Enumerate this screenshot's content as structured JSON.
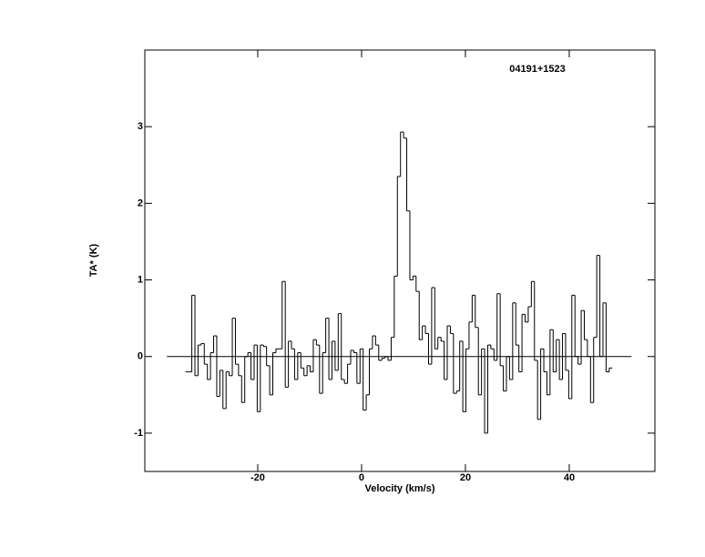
{
  "chart_data": {
    "type": "step",
    "title": "04191+1523",
    "xlabel": "Velocity (km/s)",
    "ylabel": "TA* (K)",
    "xlim": [
      -41.75,
      56.5
    ],
    "ylim": [
      -1.5,
      4.0
    ],
    "xticks": [
      -20,
      0,
      20,
      40
    ],
    "yticks": [
      -1,
      0,
      1,
      2,
      3
    ],
    "baseline": {
      "y": 0,
      "x": [
        -37.5,
        52
      ]
    },
    "color": "#000000",
    "x": [
      -33.6,
      -33,
      -32.4,
      -31.8,
      -31.2,
      -30.6,
      -30,
      -29.4,
      -28.8,
      -28.2,
      -27.6,
      -27,
      -26.4,
      -25.8,
      -25.2,
      -24.6,
      -24,
      -23.4,
      -22.8,
      -22.2,
      -21.6,
      -21,
      -20.4,
      -19.8,
      -19.2,
      -18.6,
      -18,
      -17.4,
      -16.8,
      -16.2,
      -15.6,
      -15,
      -14.4,
      -13.8,
      -13.2,
      -12.6,
      -12,
      -11.4,
      -10.8,
      -10.2,
      -9.6,
      -9,
      -8.4,
      -7.8,
      -7.2,
      -6.6,
      -6,
      -5.4,
      -4.8,
      -4.2,
      -3.6,
      -3,
      -2.4,
      -1.8,
      -1.2,
      -0.6,
      0,
      0.6,
      1.2,
      1.8,
      2.4,
      3,
      3.6,
      4.2,
      4.8,
      5.4,
      6,
      6.6,
      7.2,
      7.8,
      8.4,
      9,
      9.6,
      10.2,
      10.8,
      11.4,
      12,
      12.6,
      13.2,
      13.8,
      14.4,
      15,
      15.6,
      16.2,
      16.8,
      17.4,
      18,
      18.6,
      19.2,
      19.8,
      20.4,
      21,
      21.6,
      22.2,
      22.8,
      23.4,
      24,
      24.6,
      25.2,
      25.8,
      26.4,
      27,
      27.6,
      28.2,
      28.8,
      29.4,
      30,
      30.6,
      31.2,
      31.8,
      32.4,
      33,
      33.6,
      34.2,
      34.8,
      35.4,
      36,
      36.6,
      37.2,
      37.8,
      38.4,
      39,
      39.6,
      40.2,
      40.8,
      41.4,
      42,
      42.6,
      43.2,
      43.8,
      44.4,
      45,
      45.6,
      46.2,
      46.8,
      47.4,
      48
    ],
    "values": [
      -0.2,
      -0.2,
      0.8,
      -0.25,
      0.15,
      0.17,
      -0.1,
      -0.3,
      0.05,
      0.27,
      -0.52,
      -0.18,
      -0.68,
      -0.2,
      -0.25,
      0.5,
      -0.1,
      -0.25,
      -0.6,
      0.0,
      0.05,
      -0.3,
      0.15,
      -0.72,
      0.15,
      0.13,
      -0.12,
      -0.5,
      0.05,
      0.1,
      0.1,
      0.98,
      -0.4,
      0.2,
      0.1,
      -0.3,
      0.05,
      -0.15,
      -0.25,
      -0.12,
      -0.2,
      0.22,
      0.15,
      -0.48,
      0.05,
      0.5,
      -0.3,
      0.2,
      -0.18,
      0.56,
      -0.3,
      -0.35,
      -0.1,
      0.08,
      0.05,
      -0.35,
      0.1,
      -0.7,
      -0.5,
      0.1,
      0.27,
      0.15,
      -0.05,
      -0.02,
      0.0,
      -0.05,
      0.25,
      1.05,
      2.35,
      2.93,
      2.85,
      1.9,
      1.0,
      1.05,
      0.85,
      0.22,
      0.4,
      0.3,
      -0.1,
      0.9,
      0.1,
      0.25,
      0.2,
      -0.3,
      0.4,
      0.3,
      -0.48,
      -0.45,
      0.2,
      -0.72,
      0.1,
      0.45,
      0.8,
      0.38,
      -0.5,
      0.1,
      -1.0,
      0.15,
      0.1,
      -0.05,
      0.82,
      -0.12,
      -0.45,
      0.0,
      -0.3,
      0.7,
      0.15,
      -0.2,
      0.55,
      0.45,
      0.65,
      0.98,
      -0.05,
      -0.82,
      0.1,
      -0.2,
      -0.5,
      0.35,
      -0.2,
      0.22,
      -0.3,
      0.3,
      -0.18,
      -0.55,
      0.8,
      0.0,
      -0.1,
      0.6,
      0.22,
      0.0,
      -0.6,
      0.25,
      1.32,
      0.0,
      0.7,
      -0.2,
      -0.15
    ]
  }
}
